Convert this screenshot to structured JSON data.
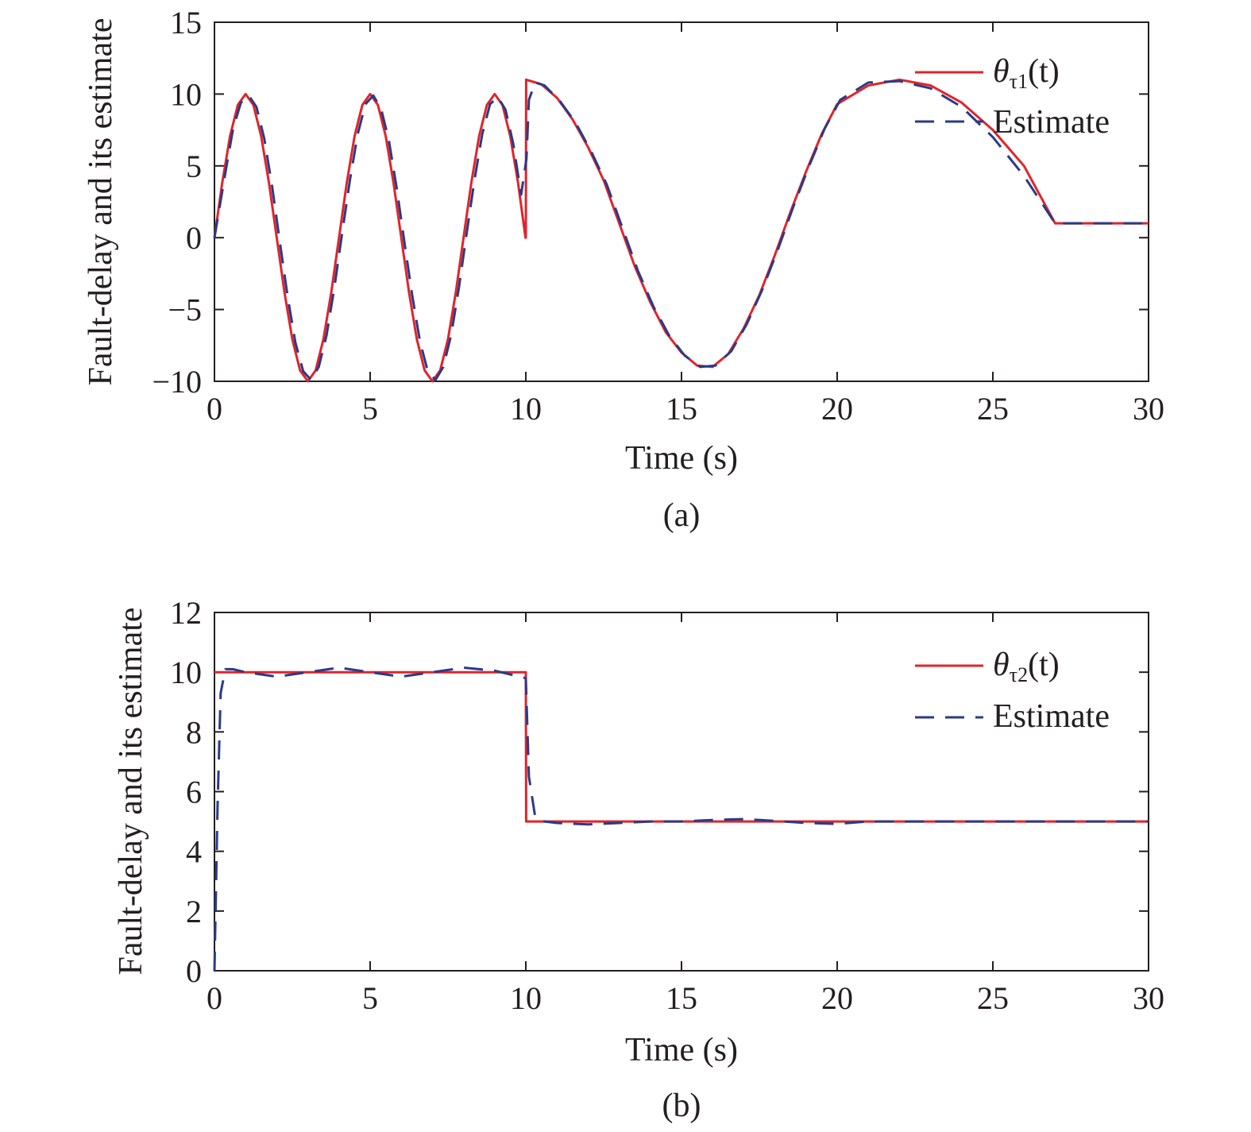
{
  "chart_data": [
    {
      "type": "line",
      "xlabel": "Time (s)",
      "ylabel": "Fault-delay and its estimate",
      "caption": "(a)",
      "xlim": [
        0,
        30
      ],
      "ylim": [
        -10,
        15
      ],
      "xticks": [
        0,
        5,
        10,
        15,
        20,
        25,
        30
      ],
      "yticks": [
        -10,
        -5,
        0,
        5,
        10,
        15
      ],
      "ytick_labels": [
        "−10",
        "−5",
        "0",
        "5",
        "10",
        "15"
      ],
      "legend": {
        "position": "top-right",
        "entries": [
          {
            "math_base": "θ",
            "math_sub": "τ1",
            "math_arg": "(t)"
          },
          {
            "text": "Estimate"
          }
        ]
      },
      "series": [
        {
          "style": "solid",
          "color": "#e0242b",
          "x": [
            0,
            0.25,
            0.5,
            0.75,
            1,
            1.25,
            1.5,
            1.75,
            2,
            2.25,
            2.5,
            2.75,
            3,
            3.25,
            3.5,
            3.75,
            4,
            4.25,
            4.5,
            4.75,
            5,
            5.25,
            5.5,
            5.75,
            6,
            6.25,
            6.5,
            6.75,
            7,
            7.25,
            7.5,
            7.75,
            8,
            8.25,
            8.5,
            8.75,
            9,
            9.25,
            9.5,
            9.75,
            9.99,
            10,
            10.01,
            10.5,
            11,
            11.5,
            12,
            12.5,
            13,
            13.5,
            14,
            14.5,
            15,
            15.5,
            16,
            16.5,
            17,
            17.5,
            18,
            18.5,
            19,
            19.5,
            20,
            21,
            22,
            23,
            24,
            25,
            26,
            27,
            28,
            29,
            30
          ],
          "y": [
            0,
            3.83,
            7.07,
            9.24,
            10,
            9.24,
            7.07,
            3.83,
            0,
            -3.83,
            -7.07,
            -9.24,
            -10,
            -9.24,
            -7.07,
            -3.83,
            0,
            3.83,
            7.07,
            9.24,
            10,
            9.24,
            7.07,
            3.83,
            0,
            -3.83,
            -7.07,
            -9.24,
            -10,
            -9.24,
            -7.07,
            -3.83,
            0,
            3.83,
            7.07,
            9.24,
            10,
            9.24,
            7.07,
            3.83,
            0,
            0,
            11,
            10.68,
            9.74,
            8.24,
            6.3,
            4.0,
            1.0,
            -2.0,
            -4.5,
            -6.6,
            -8.0,
            -8.9,
            -9.0,
            -8.1,
            -6.3,
            -4.0,
            -1.2,
            1.8,
            4.6,
            7.2,
            9.3,
            10.6,
            11,
            10.6,
            9.4,
            7.5,
            5.0,
            1.0,
            1.0,
            1.0,
            1.0
          ]
        },
        {
          "style": "dashed",
          "color": "#2b3a87",
          "x": [
            0,
            0.35,
            0.6,
            0.85,
            1.1,
            1.35,
            1.6,
            1.85,
            2.1,
            2.35,
            2.6,
            2.85,
            3.1,
            3.35,
            3.6,
            3.85,
            4.1,
            4.35,
            4.6,
            4.85,
            5.1,
            5.35,
            5.6,
            5.85,
            6.1,
            6.35,
            6.6,
            6.85,
            7.1,
            7.35,
            7.6,
            7.85,
            8.1,
            8.35,
            8.6,
            8.85,
            9.1,
            9.35,
            9.6,
            9.85,
            10.02,
            10.1,
            10.3,
            10.6,
            11.1,
            11.6,
            12.1,
            12.6,
            13.1,
            13.6,
            14.1,
            14.6,
            15.1,
            15.6,
            16.1,
            16.6,
            17.1,
            17.6,
            18.1,
            18.6,
            19.1,
            19.6,
            20.1,
            21,
            22,
            23,
            24,
            25,
            26,
            27,
            28,
            29,
            30
          ],
          "y": [
            0,
            4.5,
            7.6,
            9.4,
            9.9,
            9.1,
            6.9,
            3.6,
            -0.3,
            -4.1,
            -7.3,
            -9.3,
            -9.9,
            -9.0,
            -6.8,
            -3.5,
            0.3,
            4.0,
            7.2,
            9.3,
            9.9,
            9.0,
            6.8,
            3.5,
            -0.3,
            -4.0,
            -7.2,
            -9.3,
            -9.9,
            -9.0,
            -6.8,
            -3.5,
            0.3,
            4.0,
            7.2,
            9.3,
            9.8,
            8.9,
            6.5,
            3.0,
            5.5,
            9.6,
            10.8,
            10.6,
            9.5,
            8.0,
            6.0,
            3.7,
            0.7,
            -2.3,
            -4.8,
            -6.8,
            -8.2,
            -9.0,
            -8.9,
            -7.9,
            -6.0,
            -3.6,
            -0.8,
            2.2,
            5.0,
            7.6,
            9.6,
            10.8,
            10.9,
            10.4,
            9.1,
            7.0,
            4.3,
            1.0,
            1.0,
            1.0,
            1.0
          ]
        }
      ]
    },
    {
      "type": "line",
      "xlabel": "Time (s)",
      "ylabel": "Fault-delay and its estimate",
      "caption": "(b)",
      "xlim": [
        0,
        30
      ],
      "ylim": [
        0,
        12
      ],
      "xticks": [
        0,
        5,
        10,
        15,
        20,
        25,
        30
      ],
      "yticks": [
        0,
        2,
        4,
        6,
        8,
        10,
        12
      ],
      "ytick_labels": [
        "0",
        "2",
        "4",
        "6",
        "8",
        "10",
        "12"
      ],
      "legend": {
        "position": "top-right",
        "entries": [
          {
            "math_base": "θ",
            "math_sub": "τ2",
            "math_arg": "(t)"
          },
          {
            "text": "Estimate"
          }
        ]
      },
      "series": [
        {
          "style": "solid",
          "color": "#e0242b",
          "x": [
            0,
            0.01,
            10,
            10.01,
            30
          ],
          "y": [
            10,
            10,
            10,
            5,
            5
          ]
        },
        {
          "style": "dashed",
          "color": "#2b3a87",
          "x": [
            0,
            0.1,
            0.2,
            0.35,
            0.6,
            1,
            2,
            3,
            4,
            5,
            6,
            7,
            8,
            9,
            9.8,
            10,
            10.1,
            10.3,
            10.6,
            11,
            12,
            13,
            14,
            15,
            16,
            17,
            18,
            19,
            20,
            21,
            22,
            24,
            26,
            28,
            30
          ],
          "y": [
            0,
            5.5,
            9.3,
            10.1,
            10.1,
            10.0,
            9.85,
            10.0,
            10.15,
            10.0,
            9.85,
            10.0,
            10.15,
            10.05,
            9.85,
            9.8,
            6.5,
            5.15,
            5.0,
            4.95,
            4.9,
            4.95,
            5.0,
            5.0,
            5.05,
            5.08,
            5.02,
            4.95,
            4.92,
            5.0,
            5.0,
            5.0,
            5.0,
            5.0,
            5.0
          ]
        }
      ]
    }
  ]
}
